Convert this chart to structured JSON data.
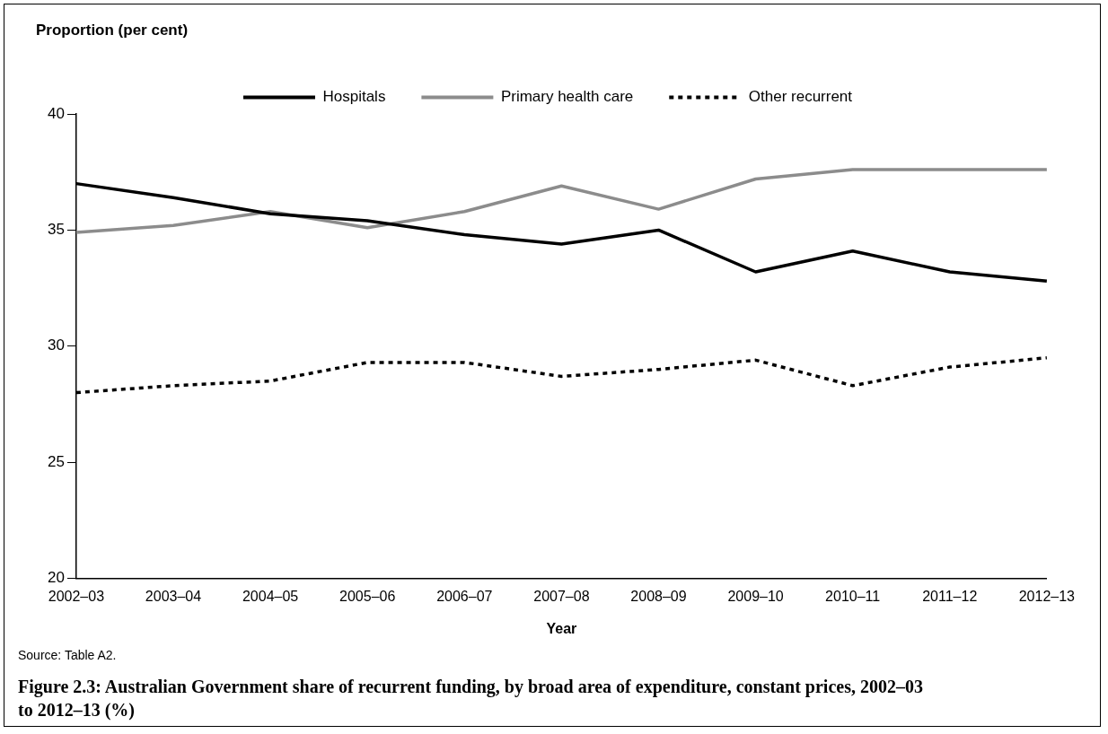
{
  "chart_data": {
    "type": "line",
    "title": "Figure 2.3: Australian Government share of recurrent funding, by broad area of expenditure, constant prices, 2002–03 to 2012–13 (%)",
    "ylabel": "Proportion (per cent)",
    "xlabel": "Year",
    "annotations": [
      "Source: Table A2."
    ],
    "categories": [
      "2002–03",
      "2003–04",
      "2004–05",
      "2005–06",
      "2006–07",
      "2007–08",
      "2008–09",
      "2009–10",
      "2010–11",
      "2011–12",
      "2012–13"
    ],
    "series": [
      {
        "name": "Hospitals",
        "color": "#000000",
        "line_style": "solid",
        "values": [
          37.0,
          36.4,
          35.7,
          35.4,
          34.8,
          34.4,
          35.0,
          33.2,
          34.1,
          33.2,
          32.8
        ]
      },
      {
        "name": "Primary health care",
        "color": "#8c8c8c",
        "line_style": "solid",
        "values": [
          34.9,
          35.2,
          35.8,
          35.1,
          35.8,
          36.9,
          35.9,
          37.2,
          37.6,
          37.6,
          37.6
        ]
      },
      {
        "name": "Other recurrent",
        "color": "#000000",
        "line_style": "dotted",
        "values": [
          28.0,
          28.3,
          28.5,
          29.3,
          29.3,
          28.7,
          29.0,
          29.4,
          28.3,
          29.1,
          29.5
        ]
      }
    ],
    "ylim": [
      20,
      40
    ],
    "yticks": [
      20,
      25,
      30,
      35,
      40
    ],
    "grid": false,
    "legend": "top",
    "marker": "none"
  }
}
